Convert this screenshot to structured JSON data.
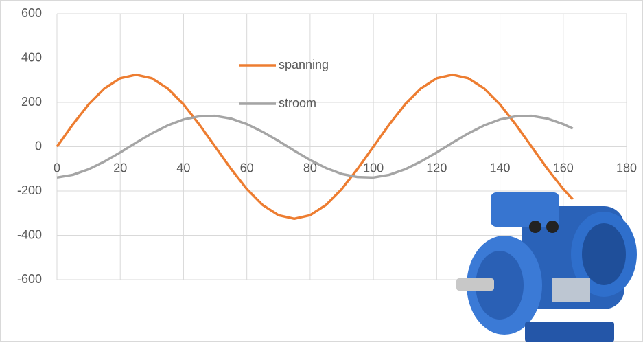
{
  "chart_data": {
    "type": "line",
    "x": [
      0,
      5,
      10,
      15,
      20,
      25,
      30,
      35,
      40,
      45,
      50,
      55,
      60,
      65,
      70,
      75,
      80,
      85,
      90,
      95,
      100,
      105,
      110,
      115,
      120,
      125,
      130,
      135,
      140,
      145,
      150,
      155,
      160,
      163
    ],
    "series": [
      {
        "name": "spanning",
        "color": "#ed7d31",
        "values": [
          0,
          100,
          191,
          263,
          309,
          325,
          309,
          263,
          191,
          100,
          0,
          -100,
          -191,
          -263,
          -309,
          -325,
          -309,
          -263,
          -191,
          -100,
          0,
          100,
          191,
          263,
          309,
          325,
          309,
          263,
          191,
          100,
          0,
          -100,
          -191,
          -237
        ]
      },
      {
        "name": "stroom",
        "color": "#a5a5a5",
        "values": [
          -139,
          -127,
          -102,
          -67,
          -26,
          18,
          60,
          96,
          123,
          137,
          139,
          127,
          102,
          67,
          26,
          -18,
          -60,
          -96,
          -123,
          -137,
          -139,
          -127,
          -102,
          -67,
          -26,
          18,
          60,
          96,
          123,
          137,
          139,
          127,
          102,
          82
        ]
      }
    ],
    "xlim": [
      0,
      180
    ],
    "xticks": [
      0,
      20,
      40,
      60,
      80,
      100,
      120,
      140,
      160,
      180
    ],
    "ylim": [
      -600,
      600
    ],
    "yticks": [
      -600,
      -400,
      -200,
      0,
      200,
      400,
      600
    ],
    "grid": true
  }
}
